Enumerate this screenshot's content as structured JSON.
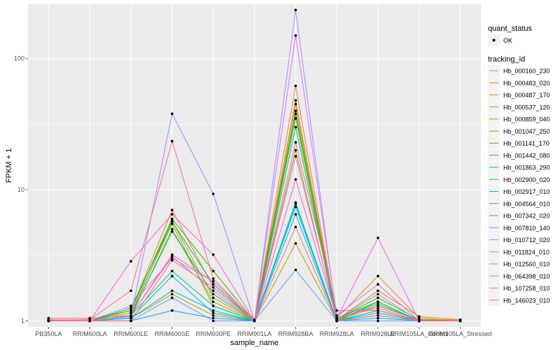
{
  "chart_data": {
    "type": "line",
    "xlabel": "sample_name",
    "ylabel": "FPKM + 1",
    "y_scale": "log10",
    "ylim": [
      0.9,
      260
    ],
    "yticks": [
      1,
      10,
      100
    ],
    "ytick_labels": [
      "1",
      "10",
      "100"
    ],
    "grid": true,
    "legend_position": "right",
    "categories": [
      "PB350LA",
      "RRIM600LA",
      "RRIM600LE",
      "RRIM600SE",
      "RRIM600PE",
      "RRIM901LA",
      "RRIM928BA",
      "RRIM928LA",
      "RRIM928LE",
      "RRIM105LA_Control",
      "RRIM105LA_Stressed"
    ],
    "point_legend": {
      "title": "quant_status",
      "entries": [
        "OK"
      ]
    },
    "line_legend_title": "tracking_id",
    "series": [
      {
        "name": "Hb_000160_230",
        "color": "#F8766D",
        "values": [
          1.05,
          1.05,
          1.1,
          3.2,
          2.0,
          1.02,
          48,
          1.05,
          1.3,
          1.02,
          1.02
        ]
      },
      {
        "name": "Hb_000483_020",
        "color": "#EA8331",
        "values": [
          1.0,
          1.03,
          1.2,
          7.0,
          1.8,
          1.01,
          62,
          1.05,
          2.2,
          1.05,
          1.0
        ]
      },
      {
        "name": "Hb_000487_170",
        "color": "#D89000",
        "values": [
          1.0,
          1.0,
          1.1,
          5.8,
          1.5,
          1.0,
          45,
          1.02,
          1.7,
          1.08,
          1.02
        ]
      },
      {
        "name": "Hb_000537_120",
        "color": "#C09B00",
        "values": [
          1.0,
          1.0,
          1.05,
          1.6,
          1.1,
          1.0,
          3.9,
          1.0,
          1.2,
          1.0,
          1.0
        ]
      },
      {
        "name": "Hb_000859_040",
        "color": "#A3A500",
        "values": [
          1.0,
          1.0,
          1.08,
          5.0,
          1.4,
          1.0,
          35,
          1.0,
          1.3,
          1.02,
          1.0
        ]
      },
      {
        "name": "Hb_001047_250",
        "color": "#7CAE00",
        "values": [
          1.0,
          1.0,
          1.15,
          5.5,
          1.3,
          1.0,
          20,
          1.0,
          1.4,
          1.0,
          1.0
        ]
      },
      {
        "name": "Hb_001141_170",
        "color": "#39B600",
        "values": [
          1.0,
          1.0,
          1.2,
          6.0,
          2.4,
          1.0,
          40,
          1.03,
          1.5,
          1.02,
          1.0
        ]
      },
      {
        "name": "Hb_001442_080",
        "color": "#00BB4E",
        "values": [
          1.0,
          1.0,
          1.25,
          5.7,
          1.9,
          1.0,
          38,
          1.05,
          1.4,
          1.0,
          1.0
        ]
      },
      {
        "name": "Hb_001863_290",
        "color": "#00BF7D",
        "values": [
          1.0,
          1.0,
          1.1,
          4.8,
          1.6,
          1.0,
          30,
          1.02,
          1.35,
          1.0,
          1.0
        ]
      },
      {
        "name": "Hb_002900_020",
        "color": "#00C1A3",
        "values": [
          1.0,
          1.0,
          1.1,
          2.4,
          1.3,
          1.0,
          8.0,
          1.0,
          1.2,
          1.0,
          1.0
        ]
      },
      {
        "name": "Hb_002917_010",
        "color": "#00BFC4",
        "values": [
          1.0,
          1.0,
          1.05,
          1.7,
          1.2,
          1.0,
          7.4,
          1.0,
          1.1,
          1.0,
          1.0
        ]
      },
      {
        "name": "Hb_004564_010",
        "color": "#00B8E5",
        "values": [
          1.0,
          1.0,
          1.05,
          2.2,
          1.15,
          1.0,
          7.8,
          1.0,
          1.15,
          1.0,
          1.0
        ]
      },
      {
        "name": "Hb_007342_020",
        "color": "#00ACFC",
        "values": [
          1.0,
          1.0,
          1.0,
          1.2,
          1.05,
          1.0,
          6.5,
          1.0,
          1.05,
          1.0,
          1.0
        ]
      },
      {
        "name": "Hb_007810_140",
        "color": "#619CFF",
        "values": [
          1.0,
          1.0,
          1.0,
          1.5,
          1.0,
          1.0,
          2.45,
          1.0,
          1.0,
          1.0,
          1.0
        ]
      },
      {
        "name": "Hb_010712_020",
        "color": "#A58AFF",
        "values": [
          1.0,
          1.0,
          1.08,
          38,
          9.3,
          1.0,
          235,
          1.03,
          1.6,
          1.0,
          1.0
        ]
      },
      {
        "name": "Hb_011824_010",
        "color": "#DB72FB",
        "values": [
          1.0,
          1.0,
          1.3,
          3.0,
          2.0,
          1.0,
          150,
          1.1,
          1.9,
          1.0,
          1.0
        ]
      },
      {
        "name": "Hb_012560_010",
        "color": "#F564E3",
        "values": [
          1.02,
          1.0,
          1.1,
          3.1,
          1.7,
          1.0,
          18,
          1.05,
          4.3,
          1.0,
          1.0
        ]
      },
      {
        "name": "Hb_064398_010",
        "color": "#FF61C9",
        "values": [
          1.0,
          1.0,
          2.85,
          6.5,
          3.2,
          1.0,
          12,
          1.05,
          1.25,
          1.0,
          1.0
        ]
      },
      {
        "name": "Hb_107258_010",
        "color": "#FF6C91",
        "values": [
          1.02,
          1.02,
          1.7,
          23.5,
          2.1,
          1.0,
          23,
          1.2,
          1.2,
          1.0,
          1.0
        ]
      },
      {
        "name": "Hb_146023_010",
        "color": "#F8766D",
        "values": [
          1.0,
          1.0,
          1.0,
          2.9,
          1.8,
          1.0,
          5.2,
          1.0,
          1.1,
          1.0,
          1.0
        ]
      }
    ]
  }
}
